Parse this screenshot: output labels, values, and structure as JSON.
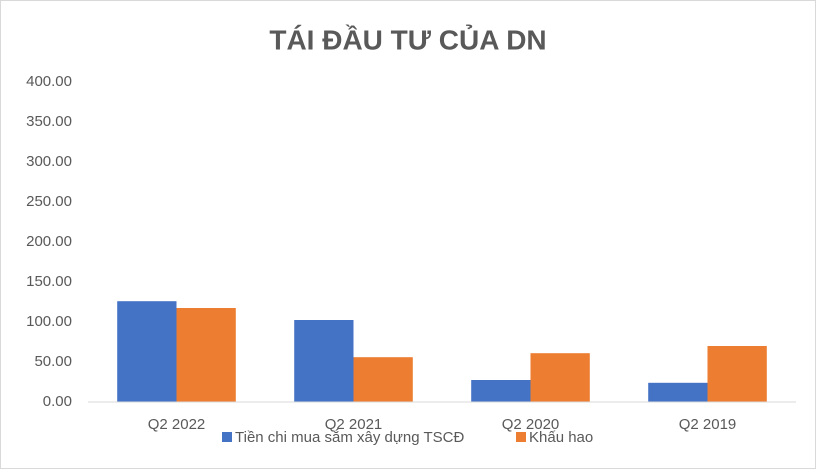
{
  "chart_data": {
    "type": "bar",
    "title": "TÁI ĐẦU TƯ CỦA DN",
    "categories": [
      "Q2 2022",
      "Q2 2021",
      "Q2 2020",
      "Q2 2019"
    ],
    "series": [
      {
        "name": "Tiền chi mua sắm xây dựng TSCĐ",
        "color": "#4472c4",
        "values": [
          126,
          102.5,
          27.5,
          24
        ]
      },
      {
        "name": "Khấu hao",
        "color": "#ed7d31",
        "values": [
          117.5,
          56,
          61,
          70
        ]
      }
    ],
    "ylim": [
      0,
      400
    ],
    "yticks": [
      {
        "value": 0,
        "label": "0.00"
      },
      {
        "value": 50,
        "label": "50.00"
      },
      {
        "value": 100,
        "label": "100.00"
      },
      {
        "value": 150,
        "label": "150.00"
      },
      {
        "value": 200,
        "label": "200.00"
      },
      {
        "value": 250,
        "label": "250.00"
      },
      {
        "value": 300,
        "label": "300.00"
      },
      {
        "value": 350,
        "label": "350.00"
      },
      {
        "value": 400,
        "label": "400.00"
      }
    ],
    "grid": false,
    "legend": "bottom"
  }
}
